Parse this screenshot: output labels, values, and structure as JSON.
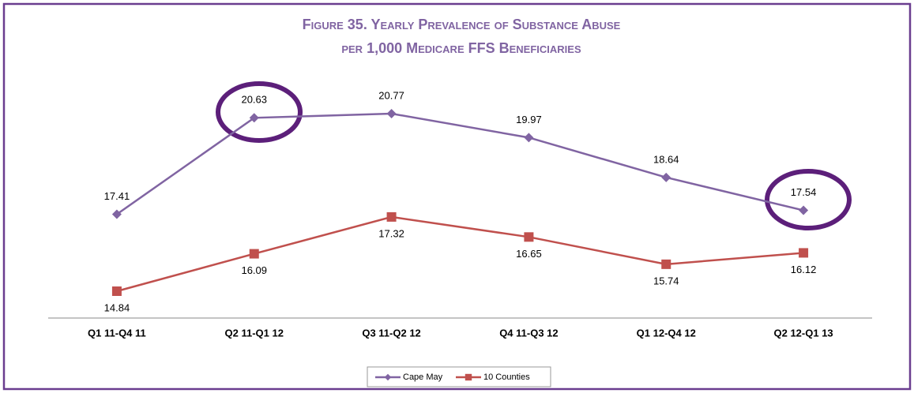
{
  "chart_data": {
    "type": "line",
    "title_lines": [
      "Figure 35. Yearly Prevalence of Substance Abuse",
      "per 1,000 Medicare FFS Beneficiaries"
    ],
    "categories": [
      "Q1 11-Q4 11",
      "Q2 11-Q1 12",
      "Q3 11-Q2 12",
      "Q4 11-Q3 12",
      "Q1 12-Q4 12",
      "Q2 12-Q1 13"
    ],
    "series": [
      {
        "name": "Cape May",
        "color": "#8064a2",
        "marker": "diamond",
        "values": [
          17.41,
          20.63,
          20.77,
          19.97,
          18.64,
          17.54
        ]
      },
      {
        "name": "10 Counties",
        "color": "#c0504d",
        "marker": "square",
        "values": [
          14.84,
          16.09,
          17.32,
          16.65,
          15.74,
          16.12
        ]
      }
    ],
    "grid": false
  }
}
